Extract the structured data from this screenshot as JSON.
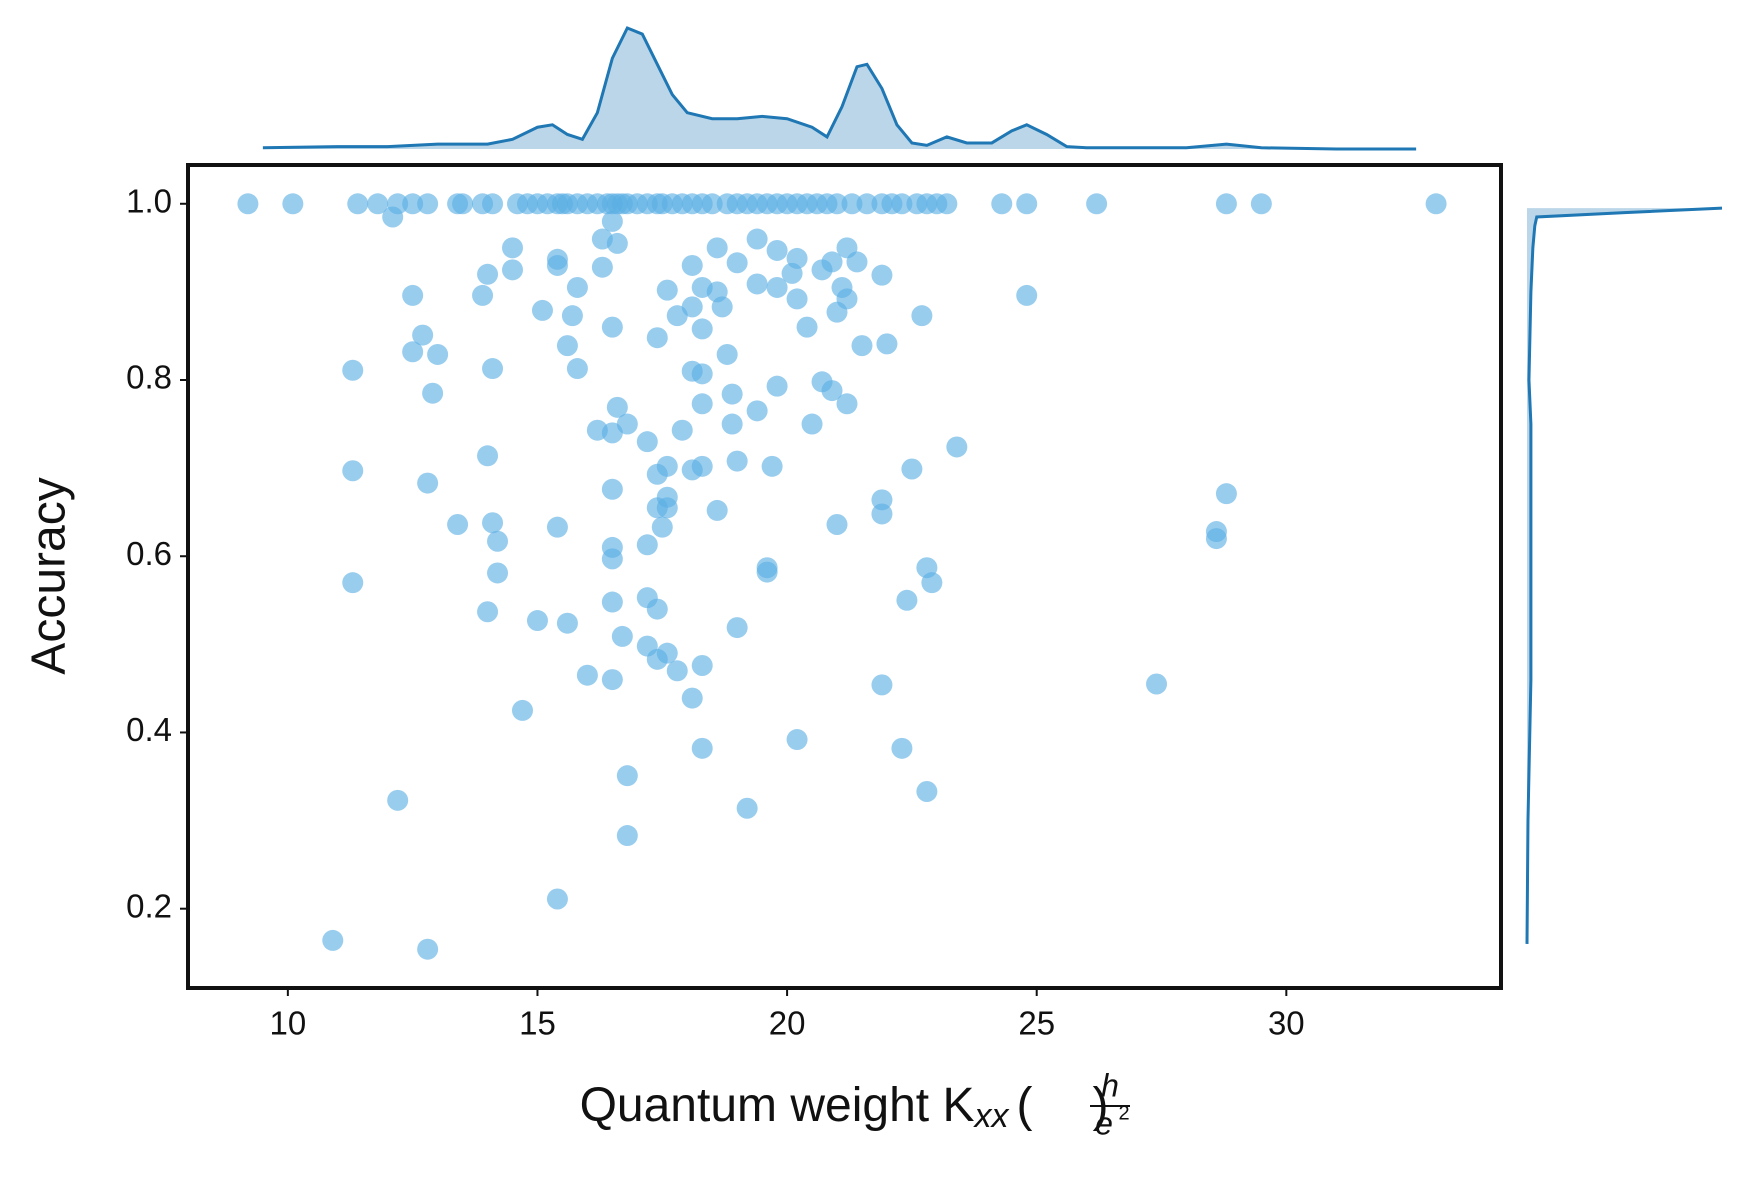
{
  "chart_data": {
    "type": "joint-scatter",
    "xlabel": {
      "text": "Quantum weight K",
      "subscript": "xx",
      "open": "(",
      "numerator": "h",
      "denominator": "e",
      "exponent": "2",
      "close": ")"
    },
    "ylabel": "Accuracy",
    "xlim": [
      8.0,
      34.3
    ],
    "ylim": [
      0.11,
      1.044
    ],
    "xticks": [
      10,
      15,
      20,
      25,
      30
    ],
    "yticks": [
      0.2,
      0.4,
      0.6,
      0.8,
      {
        "value": 1.0,
        "label": "1.0"
      }
    ],
    "color": "#5aaee4",
    "kde_color": "#1f77b4",
    "x": [
      9.2,
      10.1,
      11.4,
      11.8,
      12.2,
      12.5,
      12.8,
      13.4,
      13.5,
      13.9,
      14.1,
      14.6,
      14.8,
      15.0,
      15.2,
      15.4,
      15.5,
      15.6,
      15.8,
      16.0,
      16.2,
      16.4,
      16.5,
      16.6,
      16.7,
      16.8,
      17.0,
      17.2,
      17.4,
      17.5,
      17.7,
      17.9,
      18.1,
      18.3,
      18.5,
      18.8,
      19.0,
      19.2,
      19.4,
      19.6,
      19.8,
      20.0,
      20.2,
      20.4,
      20.6,
      20.8,
      21.0,
      21.3,
      21.6,
      21.9,
      22.1,
      22.3,
      22.6,
      22.8,
      23.0,
      23.2,
      24.3,
      24.8,
      26.2,
      28.8,
      29.5,
      33.0,
      12.1,
      16.3,
      16.5,
      16.6,
      14.5,
      14.0,
      14.5,
      15.4,
      15.4,
      16.3,
      15.8,
      13.9,
      12.5,
      15.1,
      15.7,
      16.5,
      15.6,
      15.8,
      12.7,
      12.5,
      13.0,
      11.3,
      14.1,
      12.9,
      16.6,
      16.8,
      16.2,
      16.5,
      14.0,
      11.3,
      12.8,
      16.5,
      13.4,
      14.1,
      14.2,
      15.4,
      11.3,
      14.2,
      16.5,
      16.5,
      14.0,
      15.0,
      15.6,
      16.5,
      16.7,
      16.5,
      14.7,
      16.0,
      12.2,
      12.8,
      10.9,
      16.8,
      16.8,
      15.4,
      17.4,
      17.6,
      17.8,
      18.1,
      18.1,
      18.3,
      18.3,
      18.6,
      18.6,
      18.7,
      19.0,
      19.4,
      19.4,
      19.8,
      19.8,
      20.1,
      20.2,
      20.2,
      20.4,
      20.7,
      20.9,
      21.2,
      21.1,
      21.2,
      21.0,
      21.4,
      21.5,
      21.9,
      22.0,
      22.7,
      18.1,
      18.3,
      18.8,
      18.3,
      18.9,
      19.8,
      20.7,
      20.9,
      21.2,
      20.5,
      19.4,
      18.9,
      17.9,
      17.2,
      17.6,
      17.4,
      18.3,
      18.1,
      19.0,
      19.7,
      17.4,
      17.6,
      17.6,
      17.5,
      18.6,
      17.2,
      19.6,
      19.6,
      17.2,
      17.4,
      17.2,
      17.4,
      17.6,
      17.8,
      18.3,
      18.1,
      18.3,
      19.0,
      19.2,
      20.2,
      21.0,
      21.9,
      21.9,
      21.9,
      22.5,
      23.4,
      22.8,
      22.9,
      22.4,
      22.3,
      22.8,
      24.8,
      27.4,
      28.6,
      28.6,
      28.8
    ],
    "y": [
      1,
      1,
      1,
      1,
      1,
      1,
      1,
      1,
      1,
      1,
      1,
      1,
      1,
      1,
      1,
      1,
      1,
      1,
      1,
      1,
      1,
      1,
      1,
      1,
      1,
      1,
      1,
      1,
      1,
      1,
      1,
      1,
      1,
      1,
      1,
      1,
      1,
      1,
      1,
      1,
      1,
      1,
      1,
      1,
      1,
      1,
      1,
      1,
      1,
      1,
      1,
      1,
      1,
      1,
      1,
      1,
      1,
      1,
      1,
      1,
      1,
      1,
      0.985,
      0.96,
      0.98,
      0.955,
      0.95,
      0.92,
      0.925,
      0.937,
      0.93,
      0.928,
      0.905,
      0.896,
      0.896,
      0.879,
      0.873,
      0.86,
      0.839,
      0.813,
      0.851,
      0.832,
      0.829,
      0.811,
      0.813,
      0.785,
      0.769,
      0.75,
      0.743,
      0.74,
      0.714,
      0.697,
      0.683,
      0.676,
      0.636,
      0.638,
      0.617,
      0.633,
      0.57,
      0.581,
      0.61,
      0.597,
      0.537,
      0.527,
      0.524,
      0.548,
      0.509,
      0.46,
      0.425,
      0.465,
      0.323,
      0.154,
      0.164,
      0.351,
      0.283,
      0.211,
      0.848,
      0.902,
      0.873,
      0.883,
      0.93,
      0.905,
      0.858,
      0.95,
      0.9,
      0.883,
      0.933,
      0.96,
      0.909,
      0.947,
      0.905,
      0.921,
      0.892,
      0.938,
      0.86,
      0.925,
      0.934,
      0.95,
      0.905,
      0.892,
      0.877,
      0.934,
      0.839,
      0.919,
      0.841,
      0.873,
      0.81,
      0.807,
      0.829,
      0.773,
      0.784,
      0.793,
      0.798,
      0.788,
      0.773,
      0.75,
      0.765,
      0.75,
      0.743,
      0.73,
      0.702,
      0.693,
      0.702,
      0.698,
      0.708,
      0.702,
      0.655,
      0.655,
      0.667,
      0.633,
      0.652,
      0.613,
      0.587,
      0.582,
      0.553,
      0.54,
      0.498,
      0.483,
      0.49,
      0.47,
      0.476,
      0.439,
      0.382,
      0.519,
      0.314,
      0.392,
      0.636,
      0.664,
      0.648,
      0.454,
      0.699,
      0.724,
      0.587,
      0.57,
      0.55,
      0.382,
      0.333,
      0.896,
      0.455,
      0.628,
      0.62,
      0.671
    ],
    "x_density": {
      "x": [
        9.5,
        11,
        12,
        13,
        14,
        14.5,
        15,
        15.3,
        15.6,
        15.9,
        16.2,
        16.5,
        16.8,
        17.1,
        17.4,
        17.7,
        18,
        18.5,
        19,
        19.5,
        20,
        20.5,
        20.8,
        21.1,
        21.4,
        21.6,
        21.9,
        22.2,
        22.5,
        22.8,
        23.2,
        23.6,
        24.1,
        24.5,
        24.8,
        25.2,
        25.6,
        26,
        27,
        28,
        28.8,
        29.5,
        31,
        32.6
      ],
      "density": [
        0.01,
        0.02,
        0.02,
        0.04,
        0.04,
        0.08,
        0.18,
        0.2,
        0.12,
        0.08,
        0.3,
        0.75,
        1.0,
        0.95,
        0.7,
        0.45,
        0.3,
        0.25,
        0.25,
        0.27,
        0.25,
        0.18,
        0.1,
        0.35,
        0.68,
        0.7,
        0.5,
        0.2,
        0.05,
        0.03,
        0.1,
        0.05,
        0.05,
        0.15,
        0.2,
        0.12,
        0.02,
        0.01,
        0.01,
        0.01,
        0.04,
        0.01,
        0,
        0
      ]
    },
    "y_density": {
      "y": [
        0.16,
        0.3,
        0.46,
        0.5,
        0.55,
        0.6,
        0.65,
        0.7,
        0.75,
        0.8,
        0.9,
        0.95,
        0.975,
        0.985,
        0.99,
        0.995
      ],
      "density": [
        0,
        0.005,
        0.02,
        0.02,
        0.02,
        0.02,
        0.02,
        0.02,
        0.02,
        0.01,
        0.02,
        0.03,
        0.04,
        0.05,
        0.5,
        1.0
      ]
    }
  }
}
